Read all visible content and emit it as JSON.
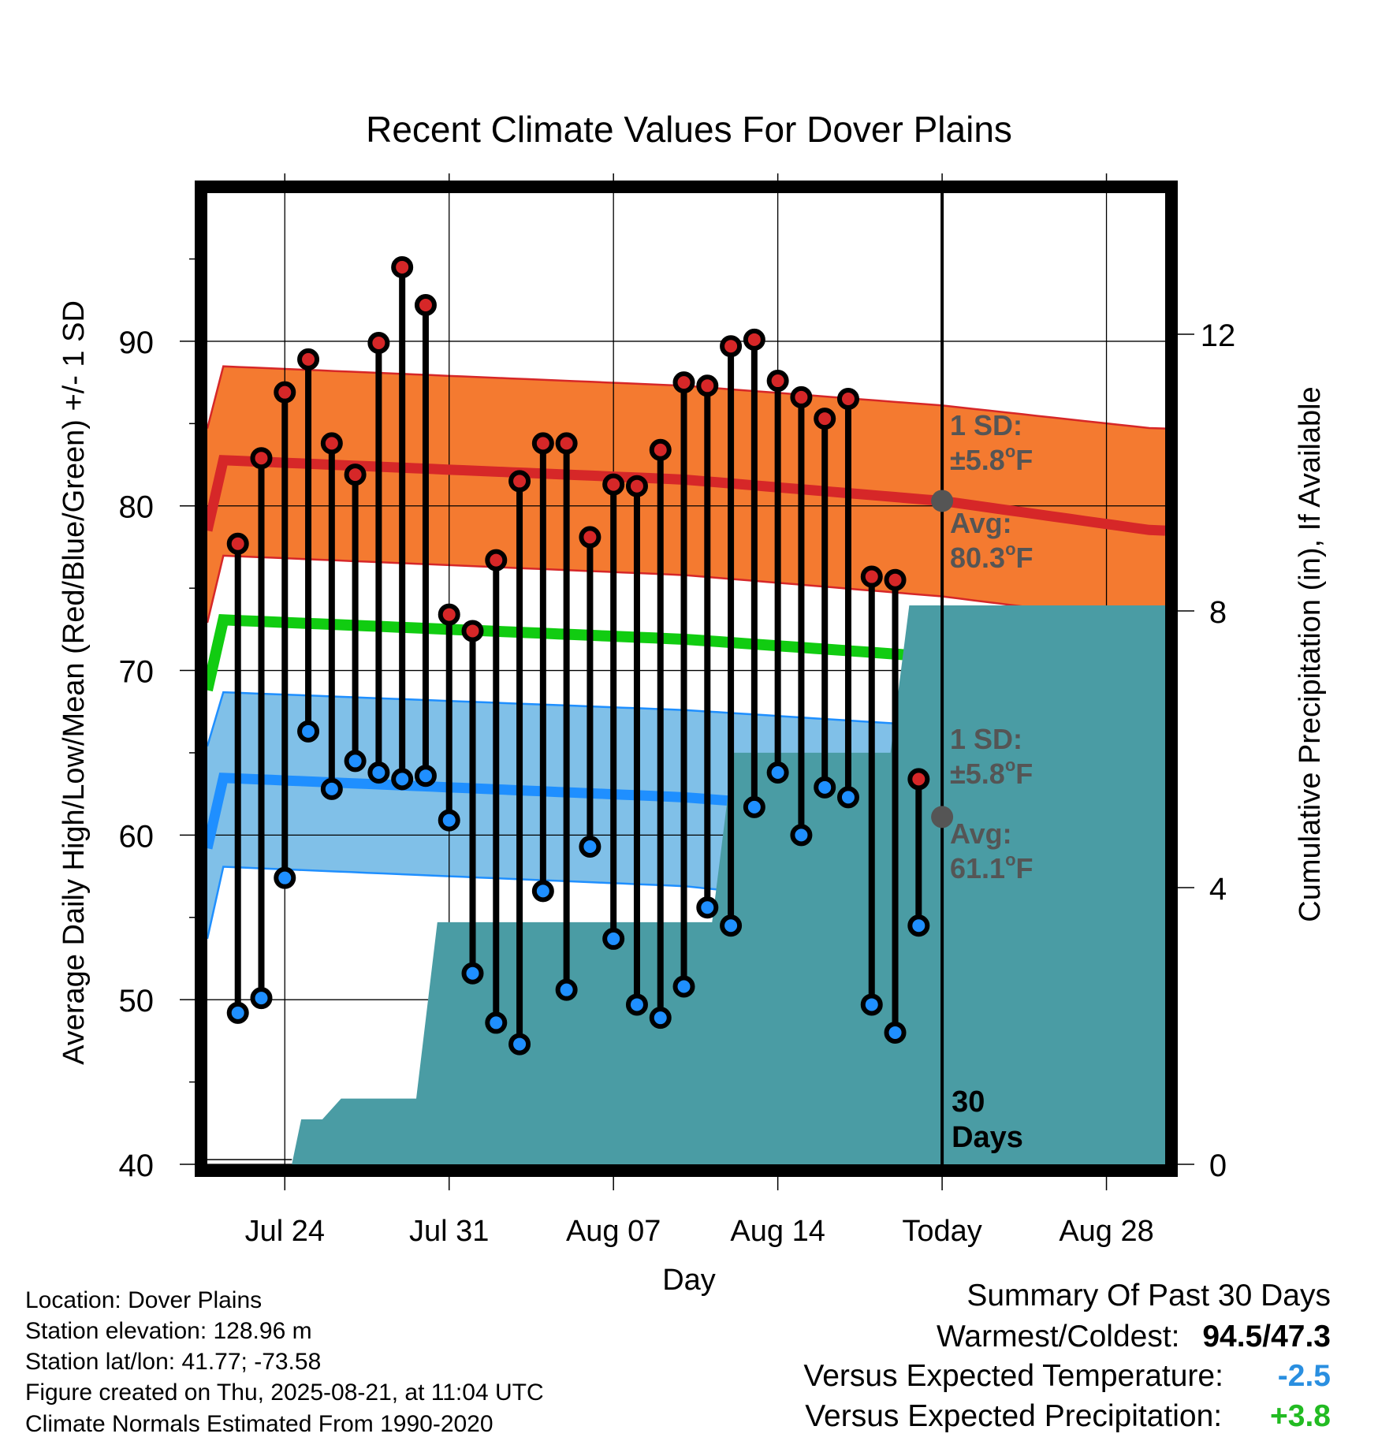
{
  "chart_data": {
    "type": "line",
    "title": "Recent Climate Values For Dover Plains",
    "xlabel": "Day",
    "ylabel_left": "Average Daily High/Low/Mean (Red/Blue/Green) +/- 1 SD",
    "ylabel_right": "Cumulative Precipitation (in), If Available",
    "x_ticks": [
      "Jul 24",
      "Jul 31",
      "Aug 07",
      "Aug 14",
      "Today",
      "Aug 28"
    ],
    "x_tick_days": [
      3,
      10,
      17,
      24,
      31,
      38
    ],
    "x_range_days": [
      -0.3,
      40.5
    ],
    "ylim_left": [
      40,
      99
    ],
    "yticks_left": [
      40,
      50,
      60,
      70,
      80,
      90
    ],
    "ylim_right": [
      0,
      14.04
    ],
    "yticks_right": [
      0,
      4,
      8,
      12
    ],
    "grid": true,
    "today_day": 31,
    "today_label": "30 Days",
    "days": [
      1,
      2,
      3,
      4,
      5,
      6,
      7,
      8,
      9,
      10,
      11,
      12,
      13,
      14,
      15,
      16,
      17,
      18,
      19,
      20,
      21,
      22,
      23,
      24,
      25,
      26,
      27,
      28,
      29,
      30
    ],
    "series": [
      {
        "name": "High",
        "color": "#d62728",
        "values": [
          77.7,
          82.9,
          86.9,
          88.9,
          83.8,
          81.9,
          89.9,
          94.5,
          92.2,
          73.4,
          72.4,
          76.7,
          81.5,
          83.8,
          83.8,
          78.1,
          81.3,
          81.2,
          83.4,
          87.5,
          87.3,
          89.7,
          90.1,
          87.6,
          86.6,
          85.3,
          86.5,
          75.7,
          75.5,
          63.4
        ]
      },
      {
        "name": "Low",
        "color": "#1f8fff",
        "values": [
          49.2,
          50.1,
          57.4,
          66.3,
          62.8,
          64.5,
          63.8,
          63.4,
          63.6,
          60.9,
          51.6,
          48.6,
          47.3,
          56.6,
          50.6,
          59.3,
          53.7,
          49.7,
          48.9,
          50.8,
          55.6,
          54.5,
          61.7,
          63.8,
          60.0,
          62.9,
          62.3,
          49.7,
          48.0,
          54.5
        ]
      }
    ],
    "normals": {
      "high_mean": [
        [
          0,
          82.8
        ],
        [
          20,
          81.6
        ],
        [
          31,
          80.3
        ],
        [
          40,
          78.5
        ]
      ],
      "high_band": [
        [
          0,
          77.0,
          88.5
        ],
        [
          20,
          75.8,
          87.3
        ],
        [
          31,
          74.5,
          86.1
        ],
        [
          40,
          72.9,
          84.7
        ]
      ],
      "mean": [
        [
          0,
          73.1
        ],
        [
          20,
          71.9
        ],
        [
          31,
          70.8
        ],
        [
          40,
          68.8
        ]
      ],
      "low_mean": [
        [
          0,
          63.5
        ],
        [
          20,
          62.3
        ],
        [
          31,
          61.1
        ],
        [
          40,
          59.2
        ]
      ],
      "low_band": [
        [
          0,
          58.1,
          68.7
        ],
        [
          20,
          56.9,
          67.6
        ],
        [
          31,
          55.3,
          66.6
        ],
        [
          40,
          53.7,
          65.4
        ]
      ],
      "colors": {
        "high_band": "#f47a30",
        "high_mean": "#d62728",
        "mean": "#11cc11",
        "low_band": "#80c0e8",
        "low_mean": "#1f8fff"
      }
    },
    "precip": {
      "color": "#4a9ca4",
      "steps": [
        [
          0,
          0.0
        ],
        [
          3.3,
          0.0
        ],
        [
          3.7,
          0.65
        ],
        [
          4.6,
          0.65
        ],
        [
          5.4,
          0.95
        ],
        [
          8.6,
          0.95
        ],
        [
          9.5,
          3.5
        ],
        [
          21.2,
          3.5
        ],
        [
          22.1,
          5.95
        ],
        [
          28.8,
          5.95
        ],
        [
          29.6,
          8.08
        ],
        [
          40.5,
          8.08
        ]
      ]
    },
    "annotations": [
      {
        "id": "hsd-1",
        "text": "1 SD:",
        "color": "#555555"
      },
      {
        "id": "hsd-2",
        "pre": "±5.8",
        "sup": "o",
        "post": "F",
        "color": "#555555"
      },
      {
        "id": "havg-1",
        "text": "Avg:",
        "color": "#555555"
      },
      {
        "id": "havg-2",
        "pre": "80.3",
        "sup": "o",
        "post": "F",
        "color": "#555555"
      },
      {
        "id": "lsd-1",
        "text": "1 SD:",
        "color": "#555555"
      },
      {
        "id": "lsd-2",
        "pre": "±5.8",
        "sup": "o",
        "post": "F",
        "color": "#555555"
      },
      {
        "id": "lavg-1",
        "text": "Avg:",
        "color": "#555555"
      },
      {
        "id": "lavg-2",
        "pre": "61.1",
        "sup": "o",
        "post": "F",
        "color": "#555555"
      }
    ]
  },
  "info": {
    "location": "Location: Dover Plains",
    "elevation": "Station elevation: 128.96 m",
    "latlon": "Station lat/lon: 41.77; -73.58",
    "created": "Figure created on Thu, 2025-08-21, at 11:04 UTC",
    "normals": "Climate Normals Estimated From 1990-2020"
  },
  "summary": {
    "title": "Summary Of Past 30 Days",
    "warm_cold_label": "Warmest/Coldest:",
    "warm_cold_value": "94.5/47.3",
    "temp_label": "Versus Expected Temperature:",
    "temp_value": "-2.5",
    "temp_color": "#2a8fe0",
    "precip_label": "Versus Expected Precipitation:",
    "precip_value": "+3.8",
    "precip_color": "#22bb22"
  }
}
